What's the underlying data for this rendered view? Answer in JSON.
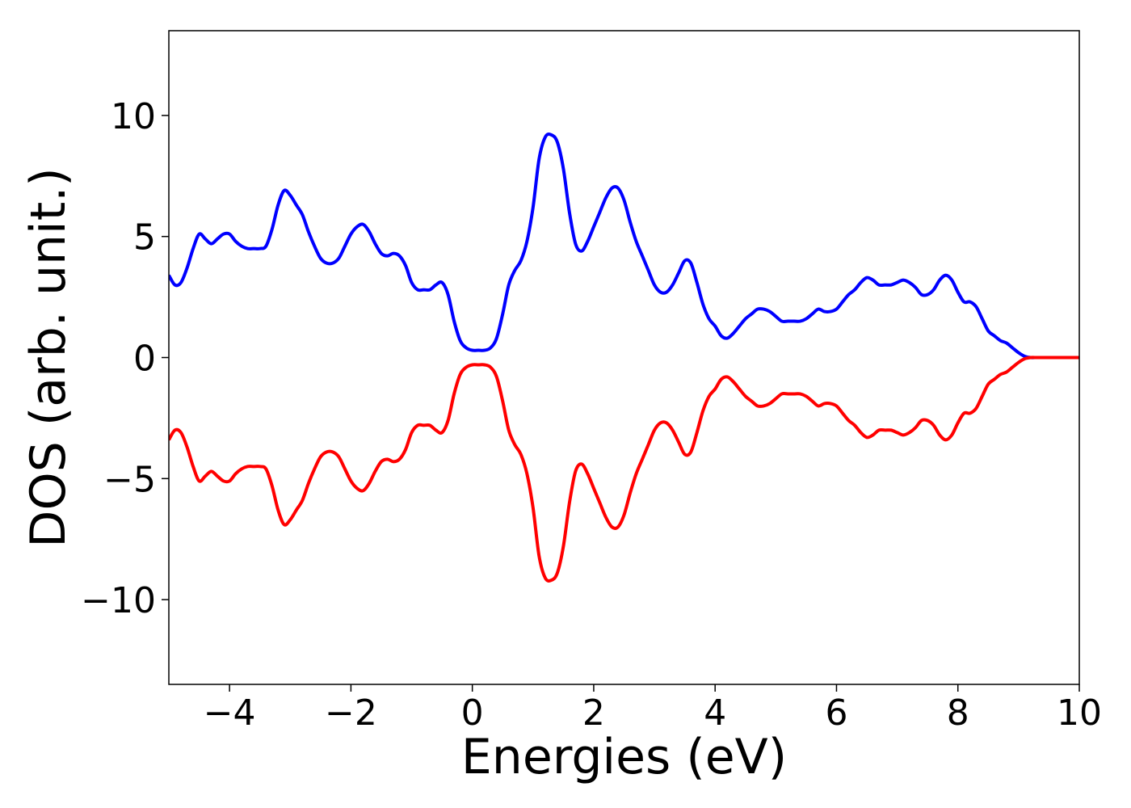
{
  "chart_data": {
    "type": "line",
    "title": "",
    "xlabel": "Energies (eV)",
    "ylabel": "DOS (arb. unit.)",
    "xlim": [
      -5,
      10
    ],
    "ylim": [
      -13.5,
      13.5
    ],
    "xticks": [
      -4,
      -2,
      0,
      2,
      4,
      6,
      8,
      10
    ],
    "xtick_labels": [
      "−4",
      "−2",
      "0",
      "2",
      "4",
      "6",
      "8",
      "10"
    ],
    "yticks": [
      -10,
      -5,
      0,
      5,
      10
    ],
    "ytick_labels": [
      "−10",
      "−5",
      "0",
      "5",
      "10"
    ],
    "grid": false,
    "legend": "none",
    "series": [
      {
        "color": "#0000ff",
        "x": [
          -5.0,
          -4.9,
          -4.8,
          -4.7,
          -4.6,
          -4.5,
          -4.4,
          -4.3,
          -4.2,
          -4.1,
          -4.0,
          -3.9,
          -3.8,
          -3.7,
          -3.6,
          -3.5,
          -3.4,
          -3.3,
          -3.2,
          -3.1,
          -3.0,
          -2.9,
          -2.8,
          -2.7,
          -2.6,
          -2.5,
          -2.4,
          -2.3,
          -2.2,
          -2.1,
          -2.0,
          -1.9,
          -1.8,
          -1.7,
          -1.6,
          -1.5,
          -1.4,
          -1.3,
          -1.2,
          -1.1,
          -1.0,
          -0.9,
          -0.8,
          -0.7,
          -0.6,
          -0.5,
          -0.4,
          -0.3,
          -0.2,
          -0.1,
          0.0,
          0.1,
          0.2,
          0.3,
          0.4,
          0.5,
          0.6,
          0.7,
          0.8,
          0.9,
          1.0,
          1.1,
          1.2,
          1.3,
          1.4,
          1.5,
          1.6,
          1.7,
          1.8,
          1.9,
          2.0,
          2.1,
          2.2,
          2.3,
          2.4,
          2.5,
          2.6,
          2.7,
          2.8,
          2.9,
          3.0,
          3.1,
          3.2,
          3.3,
          3.4,
          3.5,
          3.6,
          3.7,
          3.8,
          3.9,
          4.0,
          4.1,
          4.2,
          4.3,
          4.4,
          4.5,
          4.6,
          4.7,
          4.8,
          4.9,
          5.0,
          5.1,
          5.2,
          5.3,
          5.4,
          5.5,
          5.6,
          5.7,
          5.8,
          5.9,
          6.0,
          6.1,
          6.2,
          6.3,
          6.4,
          6.5,
          6.6,
          6.7,
          6.8,
          6.9,
          7.0,
          7.1,
          7.2,
          7.3,
          7.4,
          7.5,
          7.6,
          7.7,
          7.8,
          7.9,
          8.0,
          8.1,
          8.2,
          8.3,
          8.4,
          8.5,
          8.6,
          8.7,
          8.8,
          8.9,
          9.0,
          9.1,
          9.2,
          9.3,
          9.4,
          9.5,
          9.6,
          9.7,
          9.8,
          9.9,
          10.0
        ],
        "y": [
          3.4,
          3.0,
          3.1,
          3.7,
          4.5,
          5.1,
          4.9,
          4.7,
          4.9,
          5.1,
          5.1,
          4.8,
          4.6,
          4.5,
          4.5,
          4.5,
          4.6,
          5.3,
          6.3,
          6.9,
          6.7,
          6.3,
          5.9,
          5.2,
          4.6,
          4.1,
          3.9,
          3.9,
          4.1,
          4.6,
          5.1,
          5.4,
          5.5,
          5.2,
          4.7,
          4.3,
          4.2,
          4.3,
          4.2,
          3.8,
          3.1,
          2.8,
          2.8,
          2.8,
          3.0,
          3.1,
          2.6,
          1.5,
          0.7,
          0.4,
          0.3,
          0.3,
          0.3,
          0.4,
          0.8,
          1.8,
          3.0,
          3.6,
          4.0,
          4.8,
          6.2,
          8.2,
          9.1,
          9.2,
          8.9,
          7.8,
          6.0,
          4.7,
          4.4,
          4.8,
          5.4,
          6.0,
          6.6,
          7.0,
          7.0,
          6.5,
          5.6,
          4.8,
          4.2,
          3.6,
          3.0,
          2.7,
          2.7,
          3.0,
          3.5,
          4.0,
          3.9,
          3.1,
          2.2,
          1.6,
          1.3,
          0.9,
          0.8,
          1.0,
          1.3,
          1.6,
          1.8,
          2.0,
          2.0,
          1.9,
          1.7,
          1.5,
          1.5,
          1.5,
          1.5,
          1.6,
          1.8,
          2.0,
          1.9,
          1.9,
          2.0,
          2.3,
          2.6,
          2.8,
          3.1,
          3.3,
          3.2,
          3.0,
          3.0,
          3.0,
          3.1,
          3.2,
          3.1,
          2.9,
          2.6,
          2.6,
          2.8,
          3.2,
          3.4,
          3.2,
          2.7,
          2.3,
          2.3,
          2.1,
          1.6,
          1.1,
          0.9,
          0.7,
          0.6,
          0.4,
          0.2,
          0.05,
          0.0,
          0.0,
          0.0,
          0.0,
          0.0,
          0.0,
          0.0,
          0.0,
          0.0
        ]
      },
      {
        "color": "#ff0000",
        "x": [
          -5.0,
          -4.9,
          -4.8,
          -4.7,
          -4.6,
          -4.5,
          -4.4,
          -4.3,
          -4.2,
          -4.1,
          -4.0,
          -3.9,
          -3.8,
          -3.7,
          -3.6,
          -3.5,
          -3.4,
          -3.3,
          -3.2,
          -3.1,
          -3.0,
          -2.9,
          -2.8,
          -2.7,
          -2.6,
          -2.5,
          -2.4,
          -2.3,
          -2.2,
          -2.1,
          -2.0,
          -1.9,
          -1.8,
          -1.7,
          -1.6,
          -1.5,
          -1.4,
          -1.3,
          -1.2,
          -1.1,
          -1.0,
          -0.9,
          -0.8,
          -0.7,
          -0.6,
          -0.5,
          -0.4,
          -0.3,
          -0.2,
          -0.1,
          0.0,
          0.1,
          0.2,
          0.3,
          0.4,
          0.5,
          0.6,
          0.7,
          0.8,
          0.9,
          1.0,
          1.1,
          1.2,
          1.3,
          1.4,
          1.5,
          1.6,
          1.7,
          1.8,
          1.9,
          2.0,
          2.1,
          2.2,
          2.3,
          2.4,
          2.5,
          2.6,
          2.7,
          2.8,
          2.9,
          3.0,
          3.1,
          3.2,
          3.3,
          3.4,
          3.5,
          3.6,
          3.7,
          3.8,
          3.9,
          4.0,
          4.1,
          4.2,
          4.3,
          4.4,
          4.5,
          4.6,
          4.7,
          4.8,
          4.9,
          5.0,
          5.1,
          5.2,
          5.3,
          5.4,
          5.5,
          5.6,
          5.7,
          5.8,
          5.9,
          6.0,
          6.1,
          6.2,
          6.3,
          6.4,
          6.5,
          6.6,
          6.7,
          6.8,
          6.9,
          7.0,
          7.1,
          7.2,
          7.3,
          7.4,
          7.5,
          7.6,
          7.7,
          7.8,
          7.9,
          8.0,
          8.1,
          8.2,
          8.3,
          8.4,
          8.5,
          8.6,
          8.7,
          8.8,
          8.9,
          9.0,
          9.1,
          9.2,
          9.3,
          9.4,
          9.5,
          9.6,
          9.7,
          9.8,
          9.9,
          10.0
        ],
        "y": [
          -3.4,
          -3.0,
          -3.1,
          -3.7,
          -4.5,
          -5.1,
          -4.9,
          -4.7,
          -4.9,
          -5.1,
          -5.1,
          -4.8,
          -4.6,
          -4.5,
          -4.5,
          -4.5,
          -4.6,
          -5.3,
          -6.3,
          -6.9,
          -6.7,
          -6.3,
          -5.9,
          -5.2,
          -4.6,
          -4.1,
          -3.9,
          -3.9,
          -4.1,
          -4.6,
          -5.1,
          -5.4,
          -5.5,
          -5.2,
          -4.7,
          -4.3,
          -4.2,
          -4.3,
          -4.2,
          -3.8,
          -3.1,
          -2.8,
          -2.8,
          -2.8,
          -3.0,
          -3.1,
          -2.6,
          -1.5,
          -0.7,
          -0.4,
          -0.3,
          -0.3,
          -0.3,
          -0.4,
          -0.8,
          -1.8,
          -3.0,
          -3.6,
          -4.0,
          -4.8,
          -6.2,
          -8.2,
          -9.1,
          -9.2,
          -8.9,
          -7.8,
          -6.0,
          -4.7,
          -4.4,
          -4.8,
          -5.4,
          -6.0,
          -6.6,
          -7.0,
          -7.0,
          -6.5,
          -5.6,
          -4.8,
          -4.2,
          -3.6,
          -3.0,
          -2.7,
          -2.7,
          -3.0,
          -3.5,
          -4.0,
          -3.9,
          -3.1,
          -2.2,
          -1.6,
          -1.3,
          -0.9,
          -0.8,
          -1.0,
          -1.3,
          -1.6,
          -1.8,
          -2.0,
          -2.0,
          -1.9,
          -1.7,
          -1.5,
          -1.5,
          -1.5,
          -1.5,
          -1.6,
          -1.8,
          -2.0,
          -1.9,
          -1.9,
          -2.0,
          -2.3,
          -2.6,
          -2.8,
          -3.1,
          -3.3,
          -3.2,
          -3.0,
          -3.0,
          -3.0,
          -3.1,
          -3.2,
          -3.1,
          -2.9,
          -2.6,
          -2.6,
          -2.8,
          -3.2,
          -3.4,
          -3.2,
          -2.7,
          -2.3,
          -2.3,
          -2.1,
          -1.6,
          -1.1,
          -0.9,
          -0.7,
          -0.6,
          -0.4,
          -0.2,
          -0.05,
          0.0,
          0.0,
          0.0,
          0.0,
          0.0,
          0.0,
          0.0,
          0.0,
          0.0
        ]
      }
    ]
  }
}
